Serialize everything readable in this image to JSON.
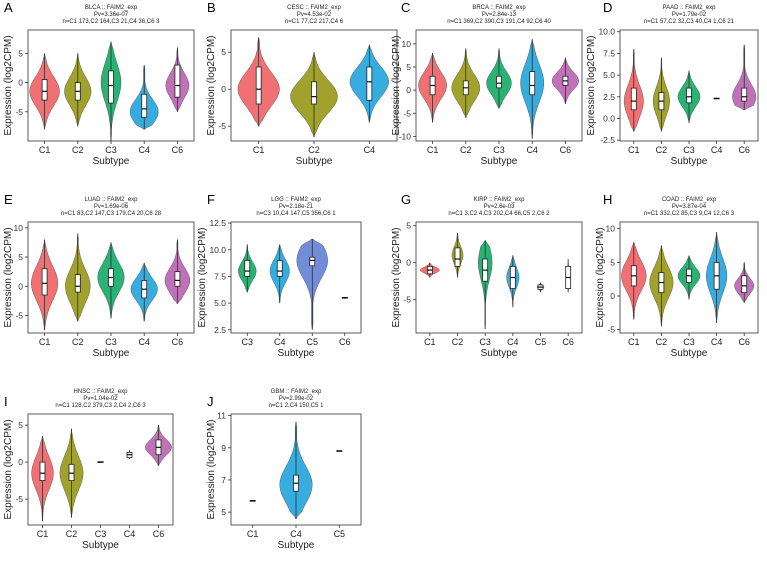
{
  "figure": {
    "gene": "FAIM2"
  },
  "colors": {
    "C1": "#F0686B",
    "C2": "#9C9C22",
    "C3": "#1DAE6C",
    "C4": "#2BA8DD",
    "C5": "#6C86D8",
    "C6": "#BC6AB4"
  },
  "chart_data": [
    {
      "type": "violin",
      "panel": "A",
      "title": "BLCA :: FAIM2_exp",
      "pvalue": "Pv=3.36e-07",
      "n_text": "n=C1 173,C2 164,C3 21,C4 36,C6 3",
      "xlabel": "Subtype",
      "ylabel": "Expression (log2CPM)",
      "ylim": [
        -10,
        9
      ],
      "yticks": [
        -5,
        0,
        5
      ],
      "ytick_labels": [
        "-5",
        "0",
        "5"
      ],
      "categories": [
        "C1",
        "C2",
        "C3",
        "C4",
        "C6"
      ],
      "groups": [
        {
          "name": "C1",
          "min": -8,
          "q1": -3,
          "median": -1.5,
          "q3": 0.5,
          "max": 5,
          "mode": -1.5,
          "width": 0.9
        },
        {
          "name": "C2",
          "min": -7.5,
          "q1": -3,
          "median": -1.5,
          "q3": 0,
          "max": 5,
          "mode": -1.5,
          "width": 0.8
        },
        {
          "name": "C3",
          "min": -10,
          "q1": -3.5,
          "median": -0.5,
          "q3": 2,
          "max": 7,
          "mode": 0,
          "width": 0.6
        },
        {
          "name": "C4",
          "min": -8,
          "q1": -6,
          "median": -4.5,
          "q3": -2,
          "max": 3,
          "mode": -5,
          "width": 0.85
        },
        {
          "name": "C6",
          "min": -5,
          "q1": -2.5,
          "median": -0.5,
          "q3": 3,
          "max": 6,
          "mode": -0.5,
          "width": 0.7
        }
      ]
    },
    {
      "type": "violin",
      "panel": "B",
      "title": "CESC :: FAIM2_exp",
      "pvalue": "Pv=4.53e-02",
      "n_text": "n=C1 77,C2 217,C4 6",
      "xlabel": "Subtype",
      "ylabel": "Expression (log2CPM)",
      "ylim": [
        -7,
        8
      ],
      "yticks": [
        -5,
        0,
        5
      ],
      "ytick_labels": [
        "-5",
        "0",
        "5"
      ],
      "categories": [
        "C1",
        "C2",
        "C4"
      ],
      "groups": [
        {
          "name": "C1",
          "min": -5,
          "q1": -2,
          "median": 0,
          "q3": 3,
          "max": 7,
          "mode": 0,
          "width": 0.75
        },
        {
          "name": "C2",
          "min": -6.5,
          "q1": -2,
          "median": -1,
          "q3": 1,
          "max": 5,
          "mode": -1,
          "width": 0.85
        },
        {
          "name": "C4",
          "min": -4.5,
          "q1": -1.5,
          "median": 1,
          "q3": 3,
          "max": 6,
          "mode": 1,
          "width": 0.7
        }
      ]
    },
    {
      "type": "violin",
      "panel": "C",
      "title": "BRCA :: FAIM2_exp",
      "pvalue": "Pv=2.84e-13",
      "n_text": "n=C1 369,C2 390,C3 191,C4 92,C6 40",
      "xlabel": "Subtype",
      "ylabel": "Expression (log2CPM)",
      "ylim": [
        -11,
        13
      ],
      "yticks": [
        -10,
        -5,
        0,
        5,
        10
      ],
      "ytick_labels": [
        "-10",
        "-5",
        "0",
        "5",
        "10"
      ],
      "categories": [
        "C1",
        "C2",
        "C3",
        "C4",
        "C6"
      ],
      "groups": [
        {
          "name": "C1",
          "min": -7,
          "q1": -1,
          "median": 1,
          "q3": 3,
          "max": 8,
          "mode": 1,
          "width": 0.85
        },
        {
          "name": "C2",
          "min": -6,
          "q1": -1,
          "median": 0.5,
          "q3": 2,
          "max": 9,
          "mode": 0.5,
          "width": 0.85
        },
        {
          "name": "C3",
          "min": -4,
          "q1": 0.5,
          "median": 1.5,
          "q3": 3,
          "max": 9,
          "mode": 1.5,
          "width": 0.75
        },
        {
          "name": "C4",
          "min": -10.5,
          "q1": -1,
          "median": 1,
          "q3": 4,
          "max": 11,
          "mode": 1.5,
          "width": 0.7
        },
        {
          "name": "C6",
          "min": -3,
          "q1": 1,
          "median": 2,
          "q3": 3,
          "max": 7,
          "mode": 2,
          "width": 0.8
        }
      ]
    },
    {
      "type": "violin",
      "panel": "D",
      "title": "PAAD :: FAIM2_exp",
      "pvalue": "Pv=1.79e-02",
      "n_text": "n=C1 57,C2 32,C3 40,C4 1,C6 21",
      "xlabel": "Subtype",
      "ylabel": "Expression (log2CPM)",
      "ylim": [
        -2.6,
        10.2
      ],
      "yticks": [
        -2.5,
        0,
        2.5,
        5,
        7.5,
        10
      ],
      "ytick_labels": [
        "-2.5",
        "0.0",
        "2.5",
        "5.0",
        "7.5",
        "10.0"
      ],
      "categories": [
        "C1",
        "C2",
        "C3",
        "C4",
        "C6"
      ],
      "groups": [
        {
          "name": "C1",
          "min": -1.5,
          "q1": 1,
          "median": 2,
          "q3": 3.5,
          "max": 8,
          "mode": 2,
          "width": 0.7
        },
        {
          "name": "C2",
          "min": -1.5,
          "q1": 1,
          "median": 2,
          "q3": 3,
          "max": 7,
          "mode": 2,
          "width": 0.6
        },
        {
          "name": "C3",
          "min": -0.5,
          "q1": 1.8,
          "median": 2.5,
          "q3": 3.5,
          "max": 5.5,
          "mode": 2.5,
          "width": 0.8
        },
        {
          "name": "C4",
          "single": 2.3
        },
        {
          "name": "C6",
          "min": 1,
          "q1": 2,
          "median": 2.5,
          "q3": 3.5,
          "max": 8.5,
          "mode": 2.5,
          "width": 0.85
        }
      ]
    },
    {
      "type": "violin",
      "panel": "E",
      "title": "LUAD :: FAIM2_exp",
      "pvalue": "Pv=1.69e-06",
      "n_text": "n=C1 83,C2 147,C3 179,C4 20,C6 28",
      "xlabel": "Subtype",
      "ylabel": "Expression (log2CPM)",
      "ylim": [
        -8,
        11
      ],
      "yticks": [
        -5,
        0,
        5,
        10
      ],
      "ytick_labels": [
        "-5",
        "0",
        "5",
        "10"
      ],
      "categories": [
        "C1",
        "C2",
        "C3",
        "C4",
        "C6"
      ],
      "groups": [
        {
          "name": "C1",
          "min": -7.5,
          "q1": -1.5,
          "median": 0.5,
          "q3": 3,
          "max": 8,
          "mode": 0.5,
          "width": 0.8
        },
        {
          "name": "C2",
          "min": -6,
          "q1": -1,
          "median": 0,
          "q3": 2,
          "max": 9,
          "mode": 0,
          "width": 0.75
        },
        {
          "name": "C3",
          "min": -5.5,
          "q1": 0,
          "median": 1.5,
          "q3": 3,
          "max": 7.5,
          "mode": 1.5,
          "width": 0.8
        },
        {
          "name": "C4",
          "min": -6,
          "q1": -2,
          "median": -0.5,
          "q3": 1,
          "max": 4,
          "mode": -0.5,
          "width": 0.8
        },
        {
          "name": "C6",
          "min": -3,
          "q1": 0,
          "median": 1,
          "q3": 2.5,
          "max": 8,
          "mode": 1,
          "width": 0.75
        }
      ]
    },
    {
      "type": "violin",
      "panel": "F",
      "title": "LGG :: FAIM2_exp",
      "pvalue": "Pv=2.18e-21",
      "n_text": "n=C3 10,C4 147,C5 356,C6 1",
      "xlabel": "Subtype",
      "ylabel": "Expression (log2CPM)",
      "ylim": [
        2.2,
        12.6
      ],
      "yticks": [
        2.5,
        5,
        7.5,
        10,
        12.5
      ],
      "ytick_labels": [
        "2.5",
        "5.0",
        "7.5",
        "10.0",
        "12.5"
      ],
      "categories": [
        "C3",
        "C4",
        "C5",
        "C6"
      ],
      "groups": [
        {
          "name": "C3",
          "min": 6,
          "q1": 7.5,
          "median": 8,
          "q3": 9,
          "max": 10.5,
          "mode": 8,
          "width": 0.55
        },
        {
          "name": "C4",
          "min": 5,
          "q1": 7.5,
          "median": 8,
          "q3": 9,
          "max": 10.5,
          "mode": 8,
          "width": 0.6
        },
        {
          "name": "C5",
          "min": 2.5,
          "q1": 8.5,
          "median": 9,
          "q3": 9.3,
          "max": 11,
          "mode": 9,
          "width": 0.95
        },
        {
          "name": "C6",
          "single": 5.5
        }
      ]
    },
    {
      "type": "violin",
      "panel": "G",
      "title": "KIRP :: FAIM2_exp",
      "pvalue": "Pv=2.6e-03",
      "n_text": "n=C1 3,C2 4,C3 202,C4 66,C5 2,C6 2",
      "xlabel": "Subtype",
      "ylabel": "Expression (log2CPM)",
      "ylim": [
        -9.5,
        5.5
      ],
      "yticks": [
        -5,
        0,
        5
      ],
      "ytick_labels": [
        "-5",
        "0",
        "5"
      ],
      "categories": [
        "C1",
        "C2",
        "C3",
        "C4",
        "C5",
        "C6"
      ],
      "groups": [
        {
          "name": "C1",
          "min": -2,
          "q1": -1.5,
          "median": -1,
          "q3": -0.5,
          "max": 0,
          "mode": -1,
          "width": 0.7
        },
        {
          "name": "C2",
          "min": -2,
          "q1": -0.5,
          "median": 0.5,
          "q3": 2,
          "max": 4,
          "mode": 1,
          "width": 0.4
        },
        {
          "name": "C3",
          "min": -9,
          "q1": -2.5,
          "median": -1,
          "q3": 0.5,
          "max": 3,
          "mode": 0,
          "width": 0.5
        },
        {
          "name": "C4",
          "min": -6,
          "q1": -3.5,
          "median": -2,
          "q3": -0.5,
          "max": 1,
          "mode": -2,
          "width": 0.45
        },
        {
          "name": "C5",
          "min": -4,
          "q1": -3.6,
          "median": -3.3,
          "q3": -3,
          "max": -2.7,
          "mode": -3.3,
          "width": 0.25
        },
        {
          "name": "C6",
          "min": -4,
          "q1": -3.5,
          "median": -2,
          "q3": -0.5,
          "max": 0.5,
          "mode": -2,
          "width": 0.15
        }
      ]
    },
    {
      "type": "violin",
      "panel": "H",
      "title": "COAD :: FAIM2_exp",
      "pvalue": "Pv=3.87e-04",
      "n_text": "n=C1 332,C2 85,C3 9,C4 12,C6 3",
      "xlabel": "Subtype",
      "ylabel": "Expression (log2CPM)",
      "ylim": [
        -5.5,
        11
      ],
      "yticks": [
        -5,
        0,
        5,
        10
      ],
      "ytick_labels": [
        "-5",
        "0",
        "5",
        "10"
      ],
      "categories": [
        "C1",
        "C2",
        "C3",
        "C4",
        "C6"
      ],
      "groups": [
        {
          "name": "C1",
          "min": -3.5,
          "q1": 1.5,
          "median": 3,
          "q3": 4.5,
          "max": 8,
          "mode": 3,
          "width": 0.9
        },
        {
          "name": "C2",
          "min": -4.5,
          "q1": 0.5,
          "median": 2,
          "q3": 3.5,
          "max": 7.5,
          "mode": 2,
          "width": 0.85
        },
        {
          "name": "C3",
          "min": -0.5,
          "q1": 2,
          "median": 3,
          "q3": 4,
          "max": 6,
          "mode": 3,
          "width": 0.8
        },
        {
          "name": "C4",
          "min": -4,
          "q1": 1,
          "median": 3,
          "q3": 5,
          "max": 9.5,
          "mode": 3,
          "width": 0.75
        },
        {
          "name": "C6",
          "min": -1,
          "q1": 0.5,
          "median": 1.5,
          "q3": 3,
          "max": 5,
          "mode": 1.5,
          "width": 0.7
        }
      ]
    },
    {
      "type": "violin",
      "panel": "I",
      "title": "HNSC :: FAIM2_exp",
      "pvalue": "Pv=1.04e-02",
      "n_text": "n=C1 128,C2 379,C3 2,C4 2,C6 3",
      "xlabel": "Subtype",
      "ylabel": "Expression (log2CPM)",
      "ylim": [
        -8.5,
        6.5
      ],
      "yticks": [
        -5,
        0,
        5
      ],
      "ytick_labels": [
        "-5",
        "0",
        "5"
      ],
      "categories": [
        "C1",
        "C2",
        "C3",
        "C4",
        "C6"
      ],
      "groups": [
        {
          "name": "C1",
          "min": -8,
          "q1": -2.5,
          "median": -1.5,
          "q3": 0,
          "max": 3.5,
          "mode": -1.5,
          "width": 0.75
        },
        {
          "name": "C2",
          "min": -7.5,
          "q1": -2.5,
          "median": -1.5,
          "q3": -0.3,
          "max": 4.5,
          "mode": -1.5,
          "width": 0.8
        },
        {
          "name": "C3",
          "single": 0
        },
        {
          "name": "C4",
          "min": 0.4,
          "q1": 0.6,
          "median": 1,
          "q3": 1.3,
          "max": 1.6,
          "mode": 1,
          "width": 0.1
        },
        {
          "name": "C6",
          "min": -0.5,
          "q1": 1,
          "median": 2,
          "q3": 3,
          "max": 5,
          "mode": 2,
          "width": 0.9
        }
      ]
    },
    {
      "type": "violin",
      "panel": "J",
      "title": "GBM :: FAIM2_exp",
      "pvalue": "Pv=2.99e-02",
      "n_text": "n=C1 2,C4 150,C5 1",
      "xlabel": "Subtype",
      "ylabel": "Expression (log2CPM)",
      "ylim": [
        4.2,
        11.1
      ],
      "yticks": [
        5,
        7,
        9,
        11
      ],
      "ytick_labels": [
        "5",
        "7",
        "9",
        "11"
      ],
      "categories": [
        "C1",
        "C4",
        "C5"
      ],
      "groups": [
        {
          "name": "C1",
          "single": 5.7
        },
        {
          "name": "C4",
          "min": 4.6,
          "q1": 6.3,
          "median": 6.8,
          "q3": 7.3,
          "max": 10.6,
          "mode": 6.7,
          "width": 0.75
        },
        {
          "name": "C5",
          "single": 8.8
        }
      ]
    }
  ]
}
